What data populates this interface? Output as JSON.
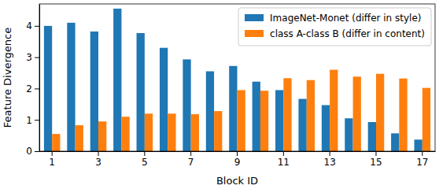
{
  "chart_data": {
    "type": "bar",
    "x_label": "Block ID",
    "y_label": "Feature Divergence",
    "categories": [
      "1",
      null,
      "3",
      null,
      "5",
      null,
      "7",
      null,
      "9",
      null,
      "11",
      null,
      "13",
      null,
      "15",
      null,
      "17"
    ],
    "series": [
      {
        "name": "ImageNet-Monet (differ in style)",
        "color": "#1f77b4",
        "values": [
          4.0,
          4.1,
          3.82,
          4.55,
          3.77,
          3.3,
          2.93,
          2.55,
          2.72,
          2.22,
          1.95,
          1.67,
          1.47,
          1.05,
          0.93,
          0.57,
          0.37
        ]
      },
      {
        "name": "class A-class B (differ in content)",
        "color": "#ff7f0e",
        "values": [
          0.55,
          0.83,
          0.95,
          1.1,
          1.2,
          1.2,
          1.18,
          1.28,
          1.95,
          1.93,
          2.33,
          2.27,
          2.6,
          2.38,
          2.47,
          2.32,
          2.02
        ]
      }
    ],
    "ylim": [
      0,
      4.7
    ],
    "yticks": [
      0,
      1,
      2,
      3,
      4
    ],
    "legend": "upper right",
    "grid": false
  }
}
